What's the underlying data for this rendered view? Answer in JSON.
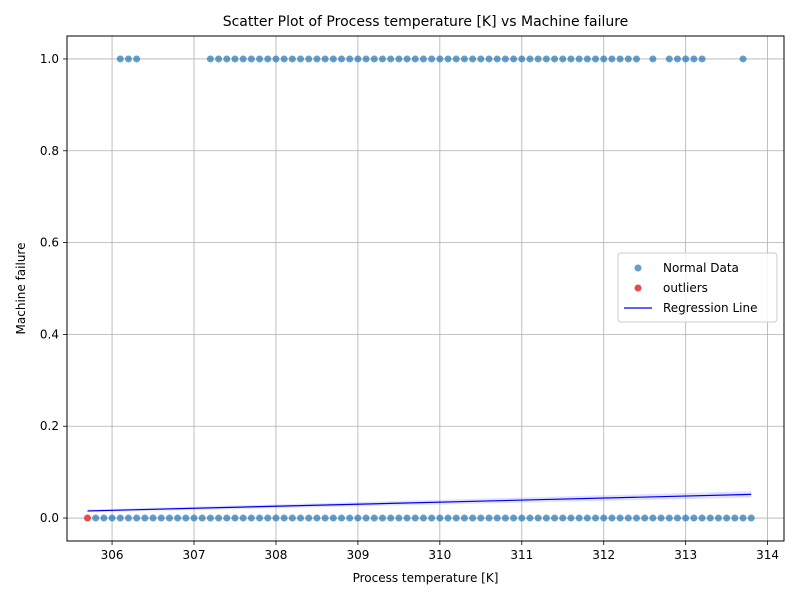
{
  "chart_data": {
    "type": "scatter",
    "title": "Scatter Plot of Process temperature [K] vs Machine failure",
    "xlabel": "Process temperature [K]",
    "ylabel": "Machine failure",
    "xlim": [
      305.45,
      314.2
    ],
    "ylim": [
      -0.05,
      1.05
    ],
    "xticks": [
      306,
      307,
      308,
      309,
      310,
      311,
      312,
      313,
      314
    ],
    "yticks": [
      0.0,
      0.2,
      0.4,
      0.6,
      0.8,
      1.0
    ],
    "ytick_labels": [
      "0.0",
      "0.2",
      "0.4",
      "0.6",
      "0.8",
      "1.0"
    ],
    "grid": true,
    "legend_position": "center-right",
    "series": [
      {
        "name": "Normal Data",
        "kind": "points",
        "color": "#1f77b4",
        "groups": [
          {
            "y": 0,
            "x_start": 305.8,
            "x_end": 313.8,
            "x_step": 0.1
          },
          {
            "y": 1,
            "x_values": [
              306.1,
              306.2,
              306.3
            ]
          },
          {
            "y": 1,
            "x_start": 307.2,
            "x_end": 312.4,
            "x_step": 0.1
          },
          {
            "y": 1,
            "x_values": [
              312.6,
              312.8,
              312.9,
              313.0,
              313.1,
              313.2,
              313.7
            ]
          }
        ]
      },
      {
        "name": "outliers",
        "kind": "points",
        "color": "#e8383b",
        "points": [
          {
            "x": 305.7,
            "y": 0
          }
        ]
      },
      {
        "name": "Regression Line",
        "kind": "line",
        "color": "#0000ee",
        "x": [
          305.7,
          313.8
        ],
        "y": [
          0.0155,
          0.0515
        ],
        "band_upper": [
          0.0185,
          0.0585
        ],
        "band_lower": [
          0.0125,
          0.0445
        ]
      }
    ]
  }
}
